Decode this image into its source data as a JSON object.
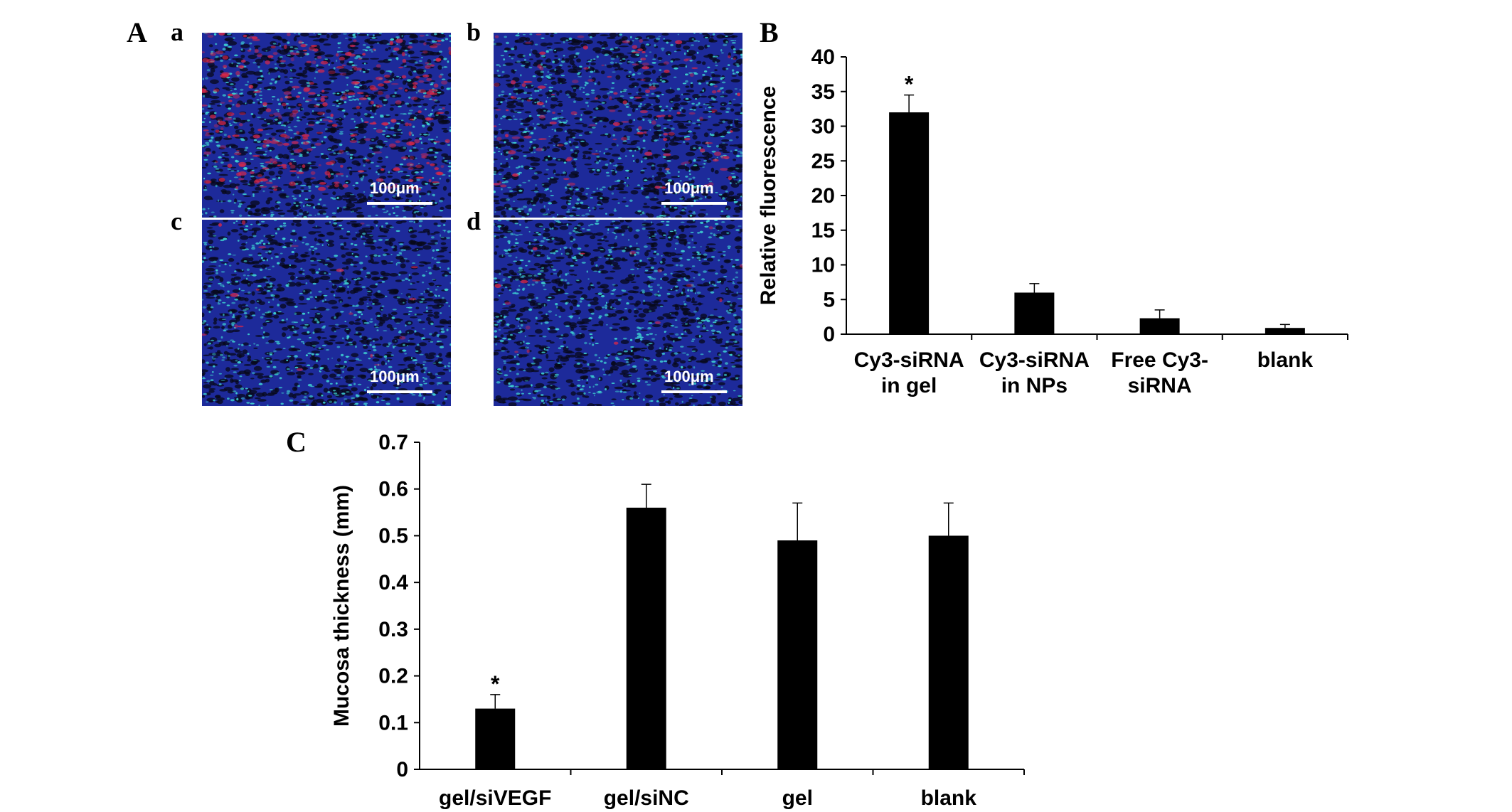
{
  "panels": {
    "A": "A",
    "B": "B",
    "C": "C",
    "sub": [
      "a",
      "b",
      "c",
      "d"
    ]
  },
  "micrographs": {
    "scalebar_label": "100μm",
    "tiles": [
      {
        "id": "a",
        "red_stain": 0.9
      },
      {
        "id": "b",
        "red_stain": 0.35
      },
      {
        "id": "c",
        "red_stain": 0.05
      },
      {
        "id": "d",
        "red_stain": 0.05
      }
    ],
    "colors": {
      "background": "#1d2a9a",
      "nuclei": "#3fd2d2",
      "cy3": "#d8284a",
      "void": "#070818"
    }
  },
  "chart_data": [
    {
      "id": "B",
      "type": "bar",
      "ylabel": "Relative fluorescence",
      "xlabel": "",
      "ylim": [
        0,
        40
      ],
      "yticks": [
        0,
        5,
        10,
        15,
        20,
        25,
        30,
        35,
        40
      ],
      "categories": [
        [
          "Cy3-siRNA",
          "in gel"
        ],
        [
          "Cy3-siRNA",
          "in NPs"
        ],
        [
          "Free Cy3-",
          "siRNA"
        ],
        [
          "blank"
        ]
      ],
      "values": [
        32,
        6,
        2.3,
        0.9
      ],
      "errors": [
        2.5,
        1.3,
        1.2,
        0.5
      ],
      "significance": [
        "*",
        "",
        "",
        ""
      ],
      "bar_color": "#000000"
    },
    {
      "id": "C",
      "type": "bar",
      "ylabel": "Mucosa thickness (mm)",
      "xlabel": "",
      "ylim": [
        0,
        0.7
      ],
      "yticks": [
        "0",
        "0.1",
        "0.2",
        "0.3",
        "0.4",
        "0.5",
        "0.6",
        "0.7"
      ],
      "categories": [
        [
          "gel/siVEGF"
        ],
        [
          "gel/siNC"
        ],
        [
          "gel"
        ],
        [
          "blank"
        ]
      ],
      "values": [
        0.13,
        0.56,
        0.49,
        0.5
      ],
      "errors": [
        0.03,
        0.05,
        0.08,
        0.07
      ],
      "significance": [
        "*",
        "",
        "",
        ""
      ],
      "bar_color": "#000000"
    }
  ]
}
